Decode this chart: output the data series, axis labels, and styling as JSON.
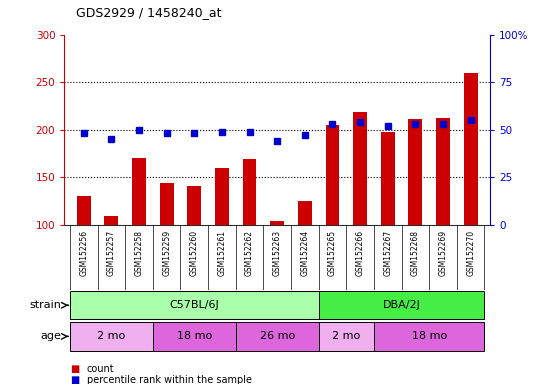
{
  "title": "GDS2929 / 1458240_at",
  "samples": [
    "GSM152256",
    "GSM152257",
    "GSM152258",
    "GSM152259",
    "GSM152260",
    "GSM152261",
    "GSM152262",
    "GSM152263",
    "GSM152264",
    "GSM152265",
    "GSM152266",
    "GSM152267",
    "GSM152268",
    "GSM152269",
    "GSM152270"
  ],
  "counts": [
    130,
    109,
    170,
    144,
    141,
    160,
    169,
    104,
    125,
    205,
    218,
    198,
    211,
    212,
    260
  ],
  "percentile_ranks": [
    48,
    45,
    50,
    48,
    48,
    49,
    49,
    44,
    47,
    53,
    54,
    52,
    53,
    53,
    55
  ],
  "ylim_left": [
    100,
    300
  ],
  "ylim_right": [
    0,
    100
  ],
  "yticks_left": [
    100,
    150,
    200,
    250,
    300
  ],
  "yticks_right": [
    0,
    25,
    50,
    75,
    100
  ],
  "bar_color": "#cc0000",
  "dot_color": "#0000cc",
  "strain_groups": [
    {
      "label": "C57BL/6J",
      "start": 0,
      "end": 9,
      "color": "#aaffaa"
    },
    {
      "label": "DBA/2J",
      "start": 9,
      "end": 15,
      "color": "#44ee44"
    }
  ],
  "age_groups": [
    {
      "label": "2 mo",
      "start": 0,
      "end": 3,
      "color": "#f0b0f0"
    },
    {
      "label": "18 mo",
      "start": 3,
      "end": 6,
      "color": "#dd66dd"
    },
    {
      "label": "26 mo",
      "start": 6,
      "end": 9,
      "color": "#dd66dd"
    },
    {
      "label": "2 mo",
      "start": 9,
      "end": 11,
      "color": "#f0b0f0"
    },
    {
      "label": "18 mo",
      "start": 11,
      "end": 15,
      "color": "#dd66dd"
    }
  ],
  "xtick_bg": "#c8c8c8",
  "plot_bg": "#ffffff",
  "strain_label": "strain",
  "age_label": "age",
  "legend_count_label": "count",
  "legend_pct_label": "percentile rank within the sample",
  "gridline_vals": [
    150,
    200,
    250
  ],
  "n_samples": 15
}
